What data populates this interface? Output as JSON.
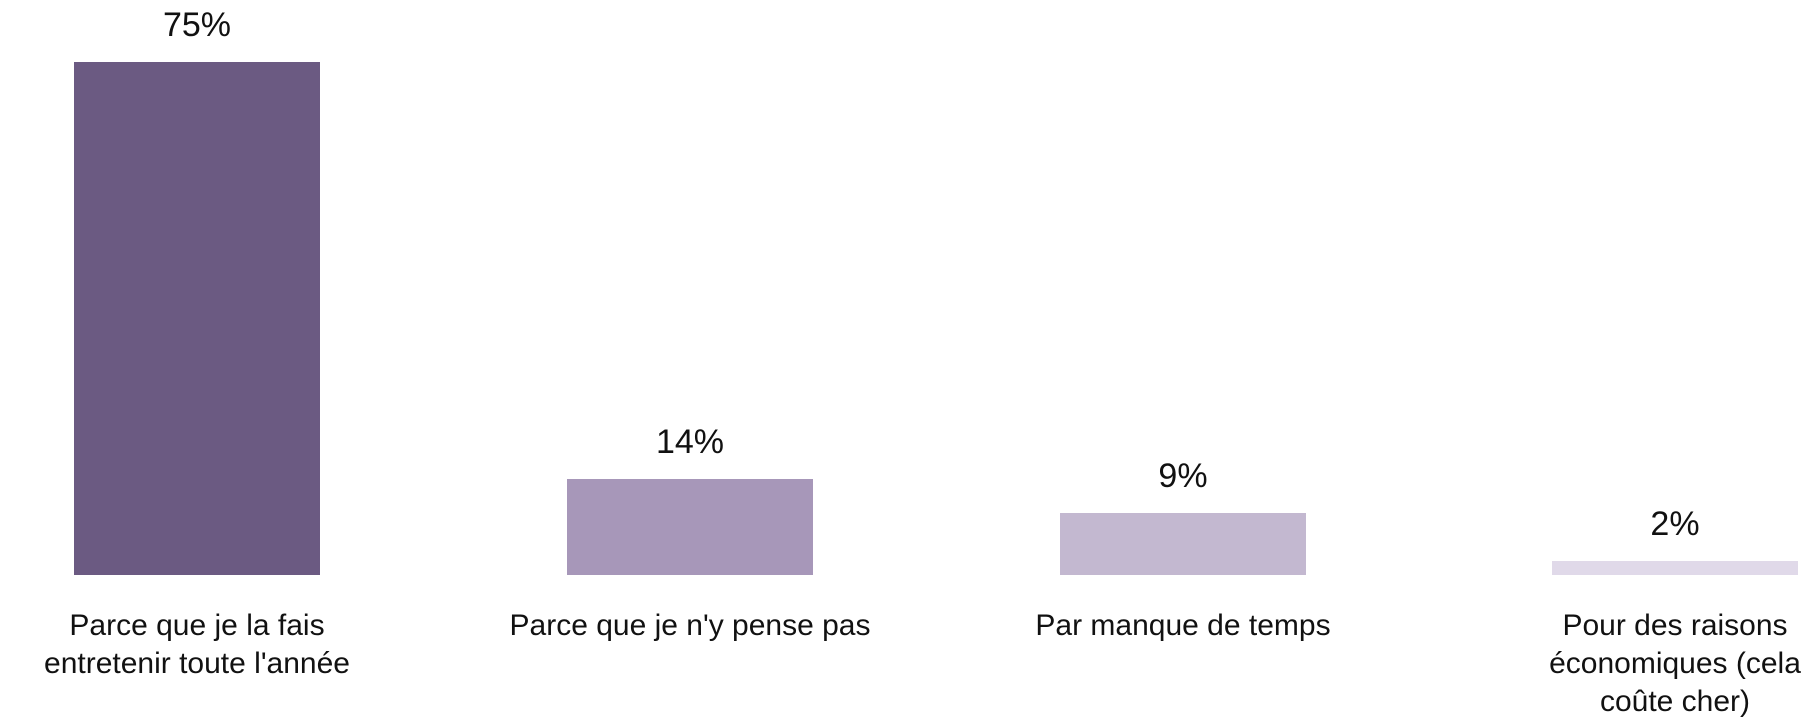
{
  "chart_data": {
    "type": "bar",
    "categories": [
      "Parce que je la fais entretenir toute l'année",
      "Parce que je n'y pense pas",
      "Par manque de temps",
      "Pour des raisons économiques (cela coûte cher)"
    ],
    "values": [
      75,
      14,
      9,
      2
    ],
    "value_labels": [
      "75%",
      "14%",
      "9%",
      "2%"
    ],
    "colors": [
      "#6b5a82",
      "#a797b9",
      "#c3b8d0",
      "#e0d9e9"
    ]
  }
}
